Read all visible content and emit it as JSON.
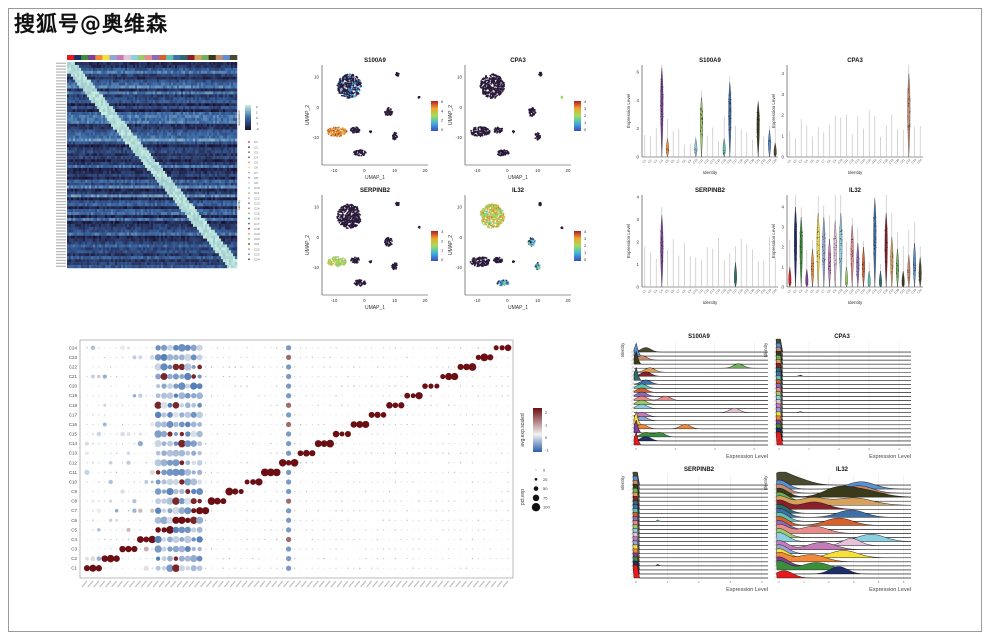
{
  "watermark": "搜狐号@奥维森",
  "colors": {
    "clusters": [
      "#E41A1C",
      "#1F2D6B",
      "#3A8F3A",
      "#7E3F98",
      "#F08A3A",
      "#F7E03A",
      "#8FA6D6",
      "#C47CB8",
      "#E6C3D8",
      "#8CCFE0",
      "#9CCB6B",
      "#E88B8B",
      "#8B6BB8",
      "#D5602B",
      "#5EC2B0",
      "#3F6FA8",
      "#2E6B6B",
      "#8B1E2B",
      "#D6A25B",
      "#6FAF5F",
      "#3A3A1A",
      "#C48C70",
      "#5B8FD0",
      "#4A4A30"
    ],
    "heat_low": "#1b1030",
    "heat_mid": "#3b6aa8",
    "heat_high": "#c8f0e0",
    "dot_low": "#2a5fa8",
    "dot_mid": "#f2f2f2",
    "dot_high": "#6b0f14"
  },
  "chart_data": [
    {
      "type": "heatmap",
      "legend_expression_label": "Expression",
      "legend_expression_ticks": [
        "2",
        "1",
        "0",
        "-1",
        "-2"
      ],
      "legend_identity_label": "Identity",
      "identities": [
        "C1",
        "C2",
        "C3",
        "C4",
        "C5",
        "C6",
        "C7",
        "C8",
        "C9",
        "C10",
        "C11",
        "C12",
        "C13",
        "C14",
        "C15",
        "C16",
        "C17",
        "C18",
        "C19",
        "C20",
        "C21",
        "C22",
        "C23",
        "C24"
      ]
    },
    {
      "type": "scatter",
      "xlabel": "UMAP_1",
      "ylabel": "UMAP_2",
      "xticks": [
        "-10",
        "0",
        "10",
        "20"
      ],
      "yticks": [
        "10",
        "0",
        "-10"
      ],
      "xlim": [
        -14,
        21
      ],
      "ylim": [
        -19,
        14
      ],
      "features": [
        {
          "title": "S100A9",
          "scale_ticks": [
            "6",
            "4",
            "2",
            "0"
          ],
          "high_region": "left-arm"
        },
        {
          "title": "CPA3",
          "scale_ticks": [
            "4",
            "3",
            "2",
            "1",
            "0"
          ],
          "high_region": "far-right"
        },
        {
          "title": "SERPINB2",
          "scale_ticks": [
            "3",
            "2",
            "1",
            "0"
          ],
          "high_region": "left-arm"
        },
        {
          "title": "IL32",
          "scale_ticks": [
            "4",
            "3",
            "2",
            "1",
            "0"
          ],
          "high_region": "top-cluster"
        }
      ]
    },
    {
      "type": "violin",
      "xlabel": "Identity",
      "ylabel": "Expression Level",
      "features": [
        {
          "title": "S100A9",
          "yticks": [
            "0",
            "2",
            "4",
            "6"
          ],
          "ymax": 6.5,
          "peaks": [
            0,
            0,
            0,
            5.6,
            0.6,
            0,
            0,
            0,
            0,
            0.6,
            3.5,
            0,
            0,
            0,
            0.6,
            4.6,
            0,
            0,
            0,
            0,
            3.2,
            0,
            1.2,
            0.3
          ]
        },
        {
          "title": "CPA3",
          "yticks": [
            "0",
            "1",
            "2",
            "3",
            "4"
          ],
          "ymax": 4.4,
          "peaks": [
            0,
            0,
            0,
            0,
            0,
            0,
            0,
            0,
            0,
            0,
            0,
            0,
            0,
            0,
            0,
            0,
            0,
            0,
            0,
            0,
            0,
            3.3,
            0,
            0
          ]
        },
        {
          "title": "SERPINB2",
          "yticks": [
            "0",
            "1",
            "2",
            "3",
            "4"
          ],
          "ymax": 4.1,
          "peaks": [
            0,
            0,
            0,
            2.5,
            0,
            0,
            0,
            0,
            0,
            0,
            0,
            0,
            0,
            0,
            0,
            0,
            0.4,
            0,
            0,
            0,
            0,
            0,
            0,
            0
          ]
        },
        {
          "title": "IL32",
          "yticks": [
            "0",
            "1",
            "2",
            "3",
            "4"
          ],
          "ymax": 4.6,
          "peaks": [
            0.3,
            3.3,
            2.8,
            0.2,
            1.2,
            3.0,
            2.8,
            1.7,
            2.6,
            3.0,
            0.3,
            2.4,
            1.5,
            1.3,
            0.1,
            3.7,
            0.1,
            3.0,
            1.8,
            1.2,
            0.1,
            0.9,
            1.5,
            0.8
          ]
        }
      ]
    },
    {
      "type": "ridge",
      "xlabel": "Expression Level",
      "ylabel": "Identity",
      "features": [
        {
          "title": "S100A9",
          "xticks": [
            "0",
            "2",
            "4",
            "6"
          ],
          "xmax": 6.7
        },
        {
          "title": "CPA3",
          "xticks": [
            "0",
            "1",
            "2",
            "3",
            "4"
          ],
          "xmax": 4.4
        },
        {
          "title": "SERPINB2",
          "xticks": [
            "0",
            "1",
            "2",
            "3",
            "4"
          ],
          "xmax": 4.2
        },
        {
          "title": "IL32",
          "xticks": [
            "0",
            "1",
            "2",
            "3",
            "4",
            "5"
          ],
          "xmax": 5.3
        }
      ]
    },
    {
      "type": "dot",
      "categories": [
        "C1",
        "C2",
        "C3",
        "C4",
        "C5",
        "C6",
        "C7",
        "C8",
        "C9",
        "C10",
        "C11",
        "C12",
        "C13",
        "C14",
        "C15",
        "C16",
        "C17",
        "C18",
        "C19",
        "C20",
        "C21",
        "C22",
        "C23",
        "C24"
      ],
      "color_legend_title": "avg.exp.scaled",
      "color_legend_ticks": [
        "2",
        "1",
        "0",
        "-1"
      ],
      "size_legend_title": "pct.exp",
      "size_legend_ticks": [
        "0",
        "25",
        "50",
        "75",
        "100"
      ]
    }
  ]
}
